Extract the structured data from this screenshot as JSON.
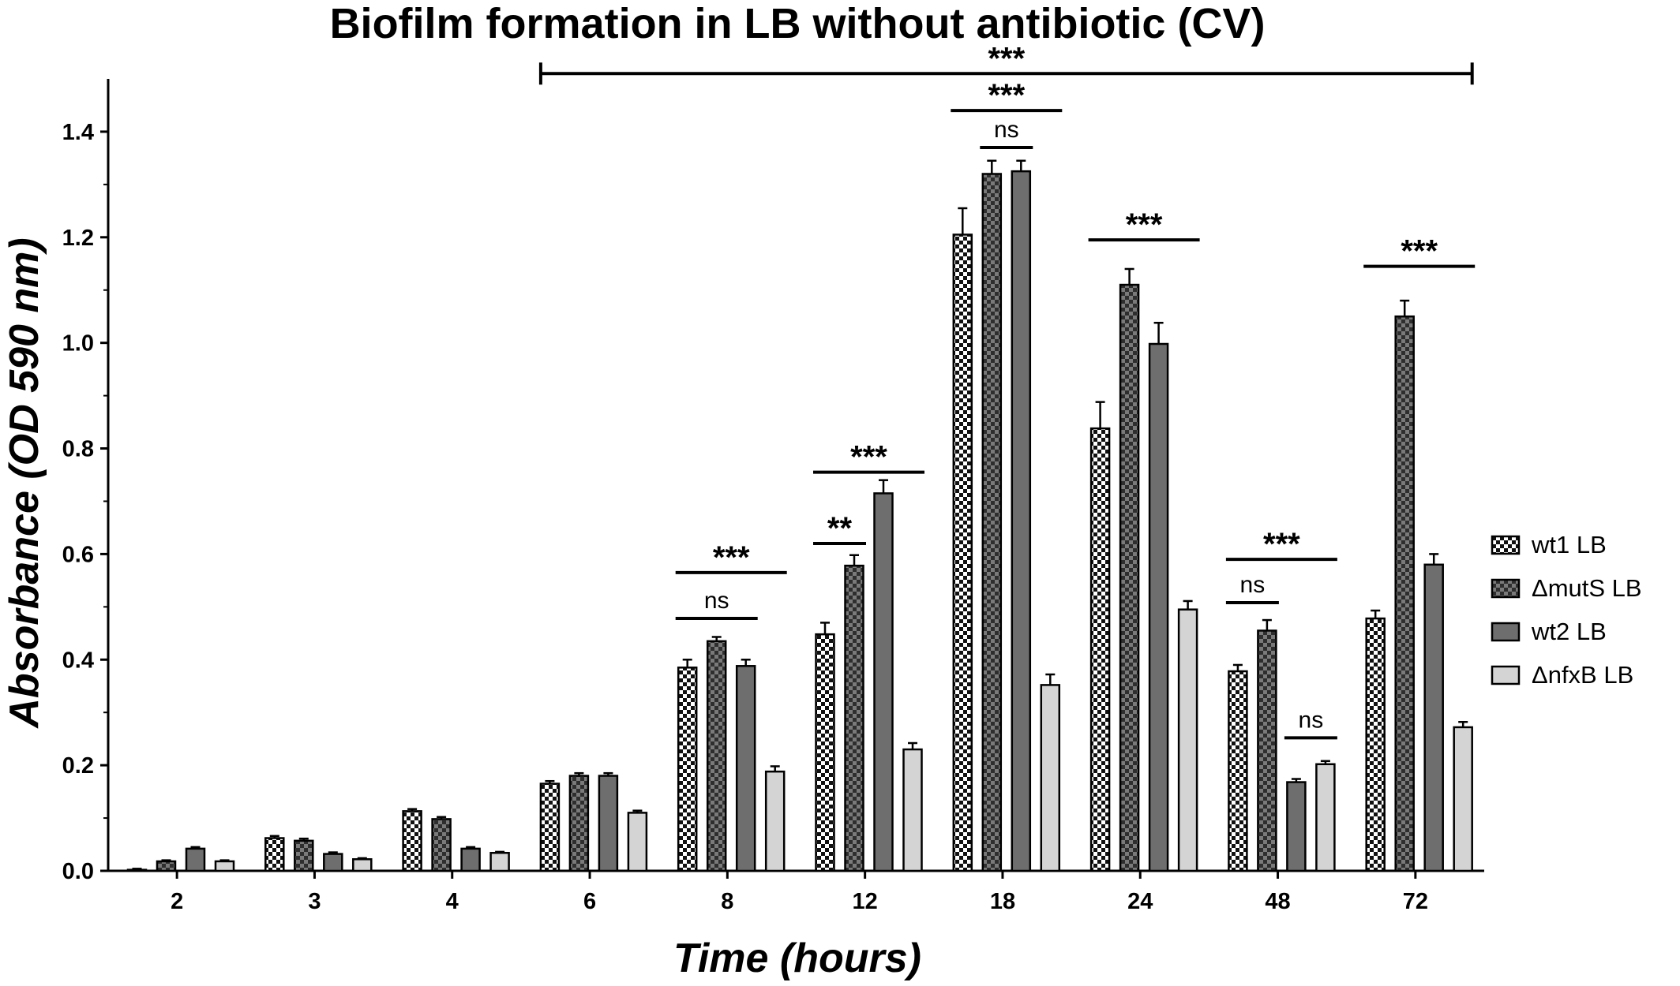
{
  "chart_data": {
    "type": "bar",
    "title": "Biofilm formation in LB without antibiotic (CV)",
    "xlabel": "Time (hours)",
    "ylabel": "Absorbance (OD 590 nm)",
    "categories": [
      "2",
      "3",
      "4",
      "6",
      "8",
      "12",
      "18",
      "24",
      "48",
      "72"
    ],
    "ylim": [
      0,
      1.5
    ],
    "yticks": [
      "0.0",
      "0.2",
      "0.4",
      "0.6",
      "0.8",
      "1.0",
      "1.2",
      "1.4"
    ],
    "ytick_values": [
      0,
      0.2,
      0.4,
      0.6,
      0.8,
      1.0,
      1.2,
      1.4
    ],
    "legend_position": "right",
    "series": [
      {
        "name": "wt1 LB",
        "pattern": "checker-white",
        "values": [
          0.002,
          0.062,
          0.113,
          0.165,
          0.385,
          0.448,
          1.205,
          0.838,
          0.378,
          0.478
        ],
        "errors": [
          0.002,
          0.004,
          0.004,
          0.005,
          0.015,
          0.022,
          0.05,
          0.05,
          0.012,
          0.015
        ]
      },
      {
        "name": "ΔmutS LB",
        "pattern": "checker-dark",
        "values": [
          0.018,
          0.057,
          0.098,
          0.18,
          0.435,
          0.578,
          1.32,
          1.11,
          0.455,
          1.05
        ],
        "errors": [
          0.002,
          0.004,
          0.004,
          0.005,
          0.008,
          0.02,
          0.025,
          0.03,
          0.02,
          0.03
        ]
      },
      {
        "name": "wt2 LB",
        "pattern": "solid-gray",
        "values": [
          0.042,
          0.032,
          0.042,
          0.18,
          0.388,
          0.715,
          1.325,
          0.998,
          0.168,
          0.58
        ],
        "errors": [
          0.003,
          0.003,
          0.003,
          0.005,
          0.012,
          0.025,
          0.02,
          0.04,
          0.006,
          0.02
        ]
      },
      {
        "name": "ΔnfxB LB",
        "pattern": "solid-light",
        "values": [
          0.018,
          0.022,
          0.034,
          0.11,
          0.188,
          0.23,
          0.352,
          0.495,
          0.202,
          0.272
        ],
        "errors": [
          0.002,
          0.002,
          0.002,
          0.004,
          0.01,
          0.012,
          0.02,
          0.016,
          0.006,
          0.01
        ]
      }
    ],
    "annotations": [
      {
        "label": "***",
        "from_group": "6",
        "to_group": "72",
        "level": 1.51,
        "capped": true
      },
      {
        "label": "***",
        "group": "18",
        "series_from": 0,
        "series_to": 3,
        "level": 1.44
      },
      {
        "label": "ns",
        "group": "18",
        "series_from": 1,
        "series_to": 2,
        "level": 1.37
      },
      {
        "label": "***",
        "group": "8",
        "series_from": 0,
        "series_to": 3,
        "level": 0.565
      },
      {
        "label": "ns",
        "group": "8",
        "series_from": 0,
        "series_to": 2,
        "level": 0.478
      },
      {
        "label": "***",
        "group": "12",
        "series_from": 0,
        "series_to": 3,
        "level": 0.755
      },
      {
        "label": "**",
        "group": "12",
        "series_from": 0,
        "series_to": 1,
        "level": 0.62
      },
      {
        "label": "***",
        "group": "24",
        "series_from": 0,
        "series_to": 3,
        "level": 1.195
      },
      {
        "label": "***",
        "group": "48",
        "series_from": 0,
        "series_to": 3,
        "level": 0.59
      },
      {
        "label": "ns",
        "group": "48",
        "series_from": 0,
        "series_to": 1,
        "level": 0.508
      },
      {
        "label": "ns",
        "group": "48",
        "series_from": 2,
        "series_to": 3,
        "level": 0.252
      },
      {
        "label": "***",
        "group": "72",
        "series_from": 0,
        "series_to": 3,
        "level": 1.145
      }
    ]
  }
}
